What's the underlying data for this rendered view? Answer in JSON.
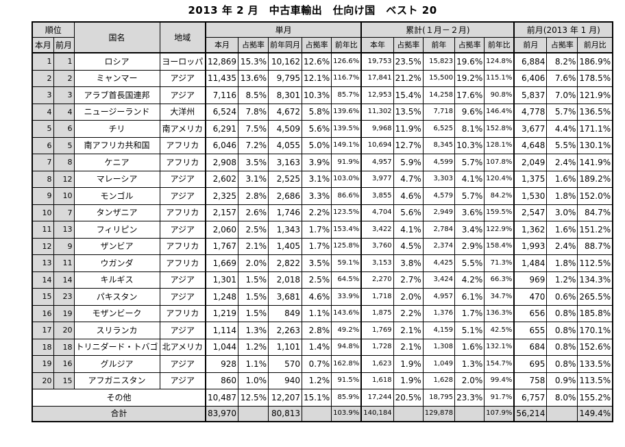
{
  "title": "2013 年 2 月　中古車輸出　仕向け国　ベスト 20",
  "headers": {
    "rank": "順位",
    "country": "国名",
    "region": "地域",
    "monthly": "単月",
    "cumulative": "累計(１月－２月)",
    "prev_month": "前月(2013 年 1 月)",
    "rank_this": "本月",
    "rank_prev": "前月",
    "m_this": "本月",
    "m_share": "占拠率",
    "m_prev_year": "前年同月",
    "m_share2": "占拠率",
    "m_yoy": "前年比",
    "c_this": "本年",
    "c_share": "占拠率",
    "c_prev": "前年",
    "c_share2": "占拠率",
    "c_yoy": "前年比",
    "p_prev": "前月",
    "p_share": "占拠率",
    "p_ratio": "前月比"
  },
  "rows": [
    {
      "rank": "1",
      "prev_rank": "1",
      "country": "ロシア",
      "region": "ヨーロッパ",
      "m_this": "12,869",
      "m_share": "15.3%",
      "m_prev": "10,162",
      "m_prev_share": "12.6%",
      "m_yoy": "126.6%",
      "c_this": "19,753",
      "c_share": "23.5%",
      "c_prev": "15,823",
      "c_prev_share": "19.6%",
      "c_yoy": "124.8%",
      "p_prev": "6,884",
      "p_share": "8.2%",
      "p_ratio": "186.9%"
    },
    {
      "rank": "2",
      "prev_rank": "2",
      "country": "ミャンマー",
      "region": "アジア",
      "m_this": "11,435",
      "m_share": "13.6%",
      "m_prev": "9,795",
      "m_prev_share": "12.1%",
      "m_yoy": "116.7%",
      "c_this": "17,841",
      "c_share": "21.2%",
      "c_prev": "15,500",
      "c_prev_share": "19.2%",
      "c_yoy": "115.1%",
      "p_prev": "6,406",
      "p_share": "7.6%",
      "p_ratio": "178.5%"
    },
    {
      "rank": "3",
      "prev_rank": "3",
      "country": "アラブ首長国連邦",
      "region": "アジア",
      "m_this": "7,116",
      "m_share": "8.5%",
      "m_prev": "8,301",
      "m_prev_share": "10.3%",
      "m_yoy": "85.7%",
      "c_this": "12,953",
      "c_share": "15.4%",
      "c_prev": "14,258",
      "c_prev_share": "17.6%",
      "c_yoy": "90.8%",
      "p_prev": "5,837",
      "p_share": "7.0%",
      "p_ratio": "121.9%"
    },
    {
      "rank": "4",
      "prev_rank": "4",
      "country": "ニュージーランド",
      "region": "大洋州",
      "m_this": "6,524",
      "m_share": "7.8%",
      "m_prev": "4,672",
      "m_prev_share": "5.8%",
      "m_yoy": "139.6%",
      "c_this": "11,302",
      "c_share": "13.5%",
      "c_prev": "7,718",
      "c_prev_share": "9.6%",
      "c_yoy": "146.4%",
      "p_prev": "4,778",
      "p_share": "5.7%",
      "p_ratio": "136.5%"
    },
    {
      "rank": "5",
      "prev_rank": "6",
      "country": "チリ",
      "region": "南アメリカ",
      "m_this": "6,291",
      "m_share": "7.5%",
      "m_prev": "4,509",
      "m_prev_share": "5.6%",
      "m_yoy": "139.5%",
      "c_this": "9,968",
      "c_share": "11.9%",
      "c_prev": "6,525",
      "c_prev_share": "8.1%",
      "c_yoy": "152.8%",
      "p_prev": "3,677",
      "p_share": "4.4%",
      "p_ratio": "171.1%"
    },
    {
      "rank": "6",
      "prev_rank": "5",
      "country": "南アフリカ共和国",
      "region": "アフリカ",
      "m_this": "6,046",
      "m_share": "7.2%",
      "m_prev": "4,055",
      "m_prev_share": "5.0%",
      "m_yoy": "149.1%",
      "c_this": "10,694",
      "c_share": "12.7%",
      "c_prev": "8,345",
      "c_prev_share": "10.3%",
      "c_yoy": "128.1%",
      "p_prev": "4,648",
      "p_share": "5.5%",
      "p_ratio": "130.1%"
    },
    {
      "rank": "7",
      "prev_rank": "8",
      "country": "ケニア",
      "region": "アフリカ",
      "m_this": "2,908",
      "m_share": "3.5%",
      "m_prev": "3,163",
      "m_prev_share": "3.9%",
      "m_yoy": "91.9%",
      "c_this": "4,957",
      "c_share": "5.9%",
      "c_prev": "4,599",
      "c_prev_share": "5.7%",
      "c_yoy": "107.8%",
      "p_prev": "2,049",
      "p_share": "2.4%",
      "p_ratio": "141.9%"
    },
    {
      "rank": "8",
      "prev_rank": "12",
      "country": "マレーシア",
      "region": "アジア",
      "m_this": "2,602",
      "m_share": "3.1%",
      "m_prev": "2,525",
      "m_prev_share": "3.1%",
      "m_yoy": "103.0%",
      "c_this": "3,977",
      "c_share": "4.7%",
      "c_prev": "3,303",
      "c_prev_share": "4.1%",
      "c_yoy": "120.4%",
      "p_prev": "1,375",
      "p_share": "1.6%",
      "p_ratio": "189.2%"
    },
    {
      "rank": "9",
      "prev_rank": "10",
      "country": "モンゴル",
      "region": "アジア",
      "m_this": "2,325",
      "m_share": "2.8%",
      "m_prev": "2,686",
      "m_prev_share": "3.3%",
      "m_yoy": "86.6%",
      "c_this": "3,855",
      "c_share": "4.6%",
      "c_prev": "4,579",
      "c_prev_share": "5.7%",
      "c_yoy": "84.2%",
      "p_prev": "1,530",
      "p_share": "1.8%",
      "p_ratio": "152.0%"
    },
    {
      "rank": "10",
      "prev_rank": "7",
      "country": "タンザニア",
      "region": "アフリカ",
      "m_this": "2,157",
      "m_share": "2.6%",
      "m_prev": "1,746",
      "m_prev_share": "2.2%",
      "m_yoy": "123.5%",
      "c_this": "4,704",
      "c_share": "5.6%",
      "c_prev": "2,949",
      "c_prev_share": "3.6%",
      "c_yoy": "159.5%",
      "p_prev": "2,547",
      "p_share": "3.0%",
      "p_ratio": "84.7%"
    },
    {
      "rank": "11",
      "prev_rank": "13",
      "country": "フィリピン",
      "region": "アジア",
      "m_this": "2,060",
      "m_share": "2.5%",
      "m_prev": "1,343",
      "m_prev_share": "1.7%",
      "m_yoy": "153.4%",
      "c_this": "3,422",
      "c_share": "4.1%",
      "c_prev": "2,784",
      "c_prev_share": "3.4%",
      "c_yoy": "122.9%",
      "p_prev": "1,362",
      "p_share": "1.6%",
      "p_ratio": "151.2%"
    },
    {
      "rank": "12",
      "prev_rank": "9",
      "country": "ザンビア",
      "region": "アフリカ",
      "m_this": "1,767",
      "m_share": "2.1%",
      "m_prev": "1,405",
      "m_prev_share": "1.7%",
      "m_yoy": "125.8%",
      "c_this": "3,760",
      "c_share": "4.5%",
      "c_prev": "2,374",
      "c_prev_share": "2.9%",
      "c_yoy": "158.4%",
      "p_prev": "1,993",
      "p_share": "2.4%",
      "p_ratio": "88.7%"
    },
    {
      "rank": "13",
      "prev_rank": "11",
      "country": "ウガンダ",
      "region": "アフリカ",
      "m_this": "1,669",
      "m_share": "2.0%",
      "m_prev": "2,822",
      "m_prev_share": "3.5%",
      "m_yoy": "59.1%",
      "c_this": "3,153",
      "c_share": "3.8%",
      "c_prev": "4,425",
      "c_prev_share": "5.5%",
      "c_yoy": "71.3%",
      "p_prev": "1,484",
      "p_share": "1.8%",
      "p_ratio": "112.5%"
    },
    {
      "rank": "14",
      "prev_rank": "14",
      "country": "キルギス",
      "region": "アジア",
      "m_this": "1,301",
      "m_share": "1.5%",
      "m_prev": "2,018",
      "m_prev_share": "2.5%",
      "m_yoy": "64.5%",
      "c_this": "2,270",
      "c_share": "2.7%",
      "c_prev": "3,424",
      "c_prev_share": "4.2%",
      "c_yoy": "66.3%",
      "p_prev": "969",
      "p_share": "1.2%",
      "p_ratio": "134.3%"
    },
    {
      "rank": "15",
      "prev_rank": "23",
      "country": "パキスタン",
      "region": "アジア",
      "m_this": "1,248",
      "m_share": "1.5%",
      "m_prev": "3,681",
      "m_prev_share": "4.6%",
      "m_yoy": "33.9%",
      "c_this": "1,718",
      "c_share": "2.0%",
      "c_prev": "4,957",
      "c_prev_share": "6.1%",
      "c_yoy": "34.7%",
      "p_prev": "470",
      "p_share": "0.6%",
      "p_ratio": "265.5%"
    },
    {
      "rank": "16",
      "prev_rank": "19",
      "country": "モザンビーク",
      "region": "アフリカ",
      "m_this": "1,219",
      "m_share": "1.5%",
      "m_prev": "849",
      "m_prev_share": "1.1%",
      "m_yoy": "143.6%",
      "c_this": "1,875",
      "c_share": "2.2%",
      "c_prev": "1,376",
      "c_prev_share": "1.7%",
      "c_yoy": "136.3%",
      "p_prev": "656",
      "p_share": "0.8%",
      "p_ratio": "185.8%"
    },
    {
      "rank": "17",
      "prev_rank": "20",
      "country": "スリランカ",
      "region": "アジア",
      "m_this": "1,114",
      "m_share": "1.3%",
      "m_prev": "2,263",
      "m_prev_share": "2.8%",
      "m_yoy": "49.2%",
      "c_this": "1,769",
      "c_share": "2.1%",
      "c_prev": "4,159",
      "c_prev_share": "5.1%",
      "c_yoy": "42.5%",
      "p_prev": "655",
      "p_share": "0.8%",
      "p_ratio": "170.1%"
    },
    {
      "rank": "18",
      "prev_rank": "18",
      "country": "トリニダード・トバゴ",
      "region": "北アメリカ",
      "m_this": "1,044",
      "m_share": "1.2%",
      "m_prev": "1,101",
      "m_prev_share": "1.4%",
      "m_yoy": "94.8%",
      "c_this": "1,728",
      "c_share": "2.1%",
      "c_prev": "1,308",
      "c_prev_share": "1.6%",
      "c_yoy": "132.1%",
      "p_prev": "684",
      "p_share": "0.8%",
      "p_ratio": "152.6%"
    },
    {
      "rank": "19",
      "prev_rank": "16",
      "country": "グルジア",
      "region": "アジア",
      "m_this": "928",
      "m_share": "1.1%",
      "m_prev": "570",
      "m_prev_share": "0.7%",
      "m_yoy": "162.8%",
      "c_this": "1,623",
      "c_share": "1.9%",
      "c_prev": "1,049",
      "c_prev_share": "1.3%",
      "c_yoy": "154.7%",
      "p_prev": "695",
      "p_share": "0.8%",
      "p_ratio": "133.5%"
    },
    {
      "rank": "20",
      "prev_rank": "15",
      "country": "アフガニスタン",
      "region": "アジア",
      "m_this": "860",
      "m_share": "1.0%",
      "m_prev": "940",
      "m_prev_share": "1.2%",
      "m_yoy": "91.5%",
      "c_this": "1,618",
      "c_share": "1.9%",
      "c_prev": "1,628",
      "c_prev_share": "2.0%",
      "c_yoy": "99.4%",
      "p_prev": "758",
      "p_share": "0.9%",
      "p_ratio": "113.5%"
    }
  ],
  "others": {
    "label": "その他",
    "m_this": "10,487",
    "m_share": "12.5%",
    "m_prev": "12,207",
    "m_prev_share": "15.1%",
    "m_yoy": "85.9%",
    "c_this": "17,244",
    "c_share": "20.5%",
    "c_prev": "18,795",
    "c_prev_share": "23.3%",
    "c_yoy": "91.7%",
    "p_prev": "6,757",
    "p_share": "8.0%",
    "p_ratio": "155.2%"
  },
  "total": {
    "label": "合計",
    "m_this": "83,970",
    "m_prev": "80,813",
    "m_yoy": "103.9%",
    "c_this": "140,184",
    "c_prev": "129,878",
    "c_yoy": "107.9%",
    "p_prev": "56,214",
    "p_ratio": "149.4%"
  }
}
